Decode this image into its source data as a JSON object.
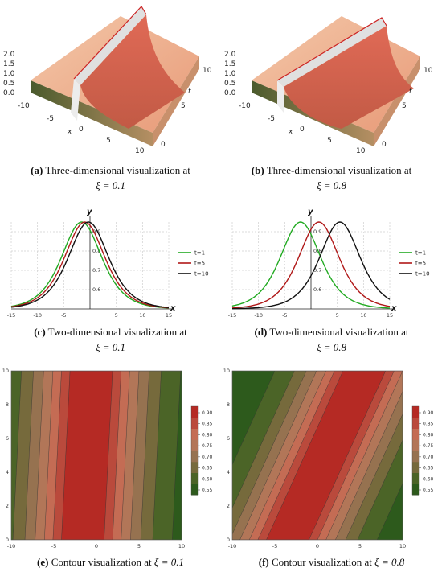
{
  "panels": [
    {
      "letter": "(a)",
      "text": "Three-dimensional visualization at",
      "param": "ξ = 0.1"
    },
    {
      "letter": "(b)",
      "text": "Three-dimensional visualization at",
      "param": "ξ = 0.8"
    },
    {
      "letter": "(c)",
      "text": "Two-dimensional visualization at",
      "param": "ξ = 0.1"
    },
    {
      "letter": "(d)",
      "text": "Two-dimensional visualization at",
      "param": "ξ = 0.8"
    },
    {
      "letter": "(e)",
      "text": "Contour visualization at",
      "param": "ξ = 0.1"
    },
    {
      "letter": "(f)",
      "text": "Contour visualization at",
      "param": "ξ = 0.8"
    }
  ],
  "surface3d": {
    "z_ticks": [
      "2.0",
      "1.5",
      "1.0",
      "0.5",
      "0.0"
    ],
    "x_ticks": [
      "-10",
      "-5",
      "0",
      "5",
      "10"
    ],
    "t_ticks": [
      "0",
      "5",
      "10"
    ],
    "x_label": "x",
    "t_label": "t"
  },
  "chart_data": [
    {
      "type": "line",
      "id": "c",
      "xlabel": "x",
      "ylabel": "y",
      "xlim": [
        -15,
        15
      ],
      "ylim": [
        0.5,
        0.95
      ],
      "x_ticks": [
        -15,
        -10,
        -5,
        5,
        10,
        15
      ],
      "y_ticks": [
        0.6,
        0.7,
        0.8,
        0.9
      ],
      "series": [
        {
          "name": "t=1",
          "color": "#22aa22",
          "center": -1.6,
          "peak": 0.95
        },
        {
          "name": "t=5",
          "color": "#b01818",
          "center": -1.0,
          "peak": 0.95
        },
        {
          "name": "t=10",
          "color": "#111111",
          "center": -0.3,
          "peak": 0.95
        }
      ]
    },
    {
      "type": "line",
      "id": "d",
      "xlabel": "x",
      "ylabel": "y",
      "xlim": [
        -15,
        15
      ],
      "ylim": [
        0.5,
        0.95
      ],
      "x_ticks": [
        -15,
        -10,
        -5,
        5,
        10,
        15
      ],
      "y_ticks": [
        0.6,
        0.7,
        0.8,
        0.9
      ],
      "series": [
        {
          "name": "t=1",
          "color": "#22aa22",
          "center": -2.0,
          "peak": 0.95
        },
        {
          "name": "t=5",
          "color": "#b01818",
          "center": 1.5,
          "peak": 0.95
        },
        {
          "name": "t=10",
          "color": "#111111",
          "center": 5.5,
          "peak": 0.95
        }
      ]
    },
    {
      "type": "heatmap",
      "id": "e",
      "xlim": [
        -10,
        10
      ],
      "ylim": [
        0,
        10
      ],
      "x_ticks": [
        -10,
        -5,
        0,
        5,
        10
      ],
      "y_ticks": [
        0,
        2,
        4,
        6,
        8,
        10
      ],
      "center_at_t0": -1.6,
      "center_at_t10": -0.6,
      "colorbar_ticks": [
        0.9,
        0.85,
        0.8,
        0.75,
        0.7,
        0.65,
        0.6,
        0.55
      ],
      "colorbar_labels": [
        "0.90",
        "0.85",
        "0.80",
        "0.75",
        "0.70",
        "0.65",
        "0.60",
        "0.55"
      ]
    },
    {
      "type": "heatmap",
      "id": "f",
      "xlim": [
        -10,
        10
      ],
      "ylim": [
        0,
        10
      ],
      "x_ticks": [
        -10,
        -5,
        0,
        5,
        10
      ],
      "y_ticks": [
        0,
        2,
        4,
        6,
        8,
        10
      ],
      "center_at_t0": -3.5,
      "center_at_t10": 5.5,
      "colorbar_ticks": [
        0.9,
        0.85,
        0.8,
        0.75,
        0.7,
        0.65,
        0.6,
        0.55
      ],
      "colorbar_labels": [
        "0.90",
        "0.85",
        "0.80",
        "0.75",
        "0.70",
        "0.65",
        "0.60",
        "0.55"
      ]
    }
  ]
}
